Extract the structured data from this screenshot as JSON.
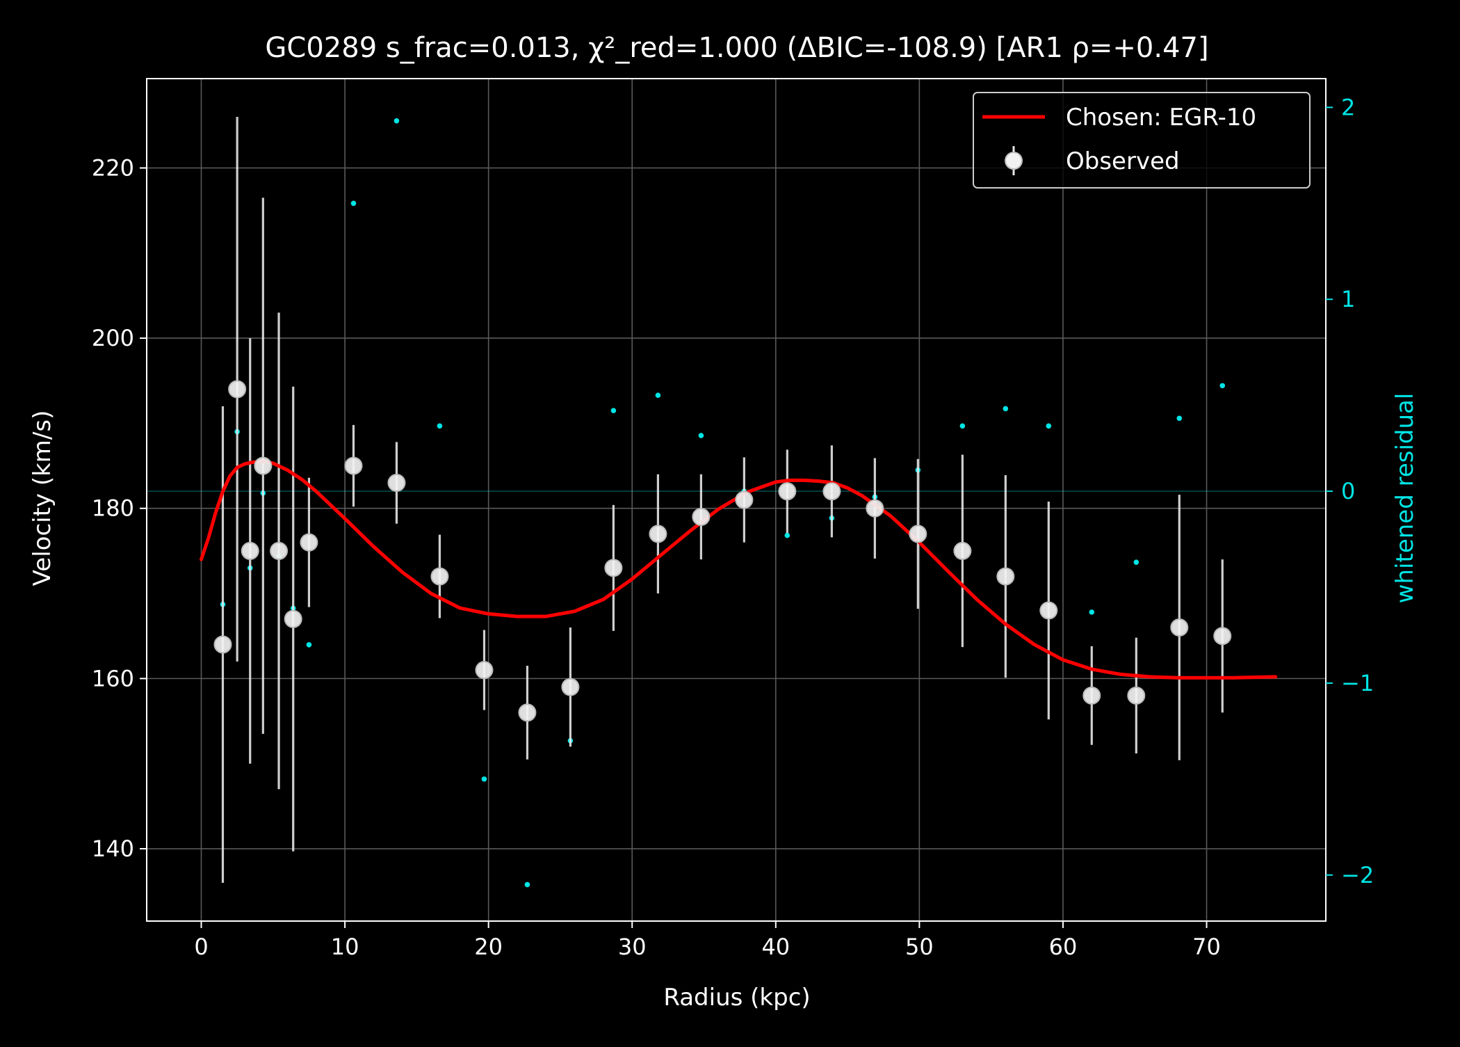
{
  "chart_data": {
    "type": "scatter",
    "title": "GC0289  s_frac=0.013, χ²_red=1.000  (ΔBIC=-108.9) [AR1 ρ=+0.47]",
    "xlabel": "Radius (kpc)",
    "ylabel": "Velocity (km/s)",
    "y2label": "whitened residual",
    "xlim": [
      -3.8,
      78.3
    ],
    "ylim": [
      131.5,
      230.5
    ],
    "y2lim": [
      -2.24,
      2.15
    ],
    "x_ticks": [
      0,
      10,
      20,
      30,
      40,
      50,
      60,
      70
    ],
    "y_ticks": [
      140,
      160,
      180,
      200,
      220
    ],
    "y2_ticks": [
      -2,
      -1,
      0,
      1,
      2
    ],
    "y2_tick_labels": [
      "−2",
      "−1",
      "0",
      "1",
      "2"
    ],
    "grid": true,
    "legend_position": "top-right",
    "colors": {
      "background": "#000000",
      "axes": "#ffffff",
      "grid": "#5a5a5a",
      "model": "#ff0000",
      "observed": "#e6e6e6",
      "residual": "#00e5e5"
    },
    "series": [
      {
        "name": "Chosen: EGR-10",
        "kind": "line",
        "x": [
          0,
          0.5,
          1,
          1.5,
          2,
          2.5,
          3,
          3.5,
          4,
          4.5,
          5,
          6,
          7,
          8,
          10,
          12,
          14,
          16,
          18,
          20,
          22,
          24,
          26,
          28,
          30,
          32,
          34,
          36,
          38,
          40,
          41,
          42,
          43,
          44,
          45,
          46,
          48,
          50,
          52,
          54,
          56,
          58,
          60,
          62,
          64,
          66,
          68,
          70,
          72,
          74.8
        ],
        "y": [
          174,
          176.5,
          179.5,
          182,
          183.8,
          184.8,
          185.2,
          185.4,
          185.5,
          185.5,
          185.3,
          184.5,
          183.4,
          182,
          178.8,
          175.5,
          172.5,
          170,
          168.3,
          167.6,
          167.3,
          167.3,
          167.9,
          169.3,
          171.7,
          174.5,
          177.3,
          179.9,
          181.9,
          183.1,
          183.3,
          183.3,
          183.2,
          183,
          182.4,
          181.5,
          179.1,
          176,
          172.6,
          169.3,
          166.4,
          164,
          162.2,
          161.1,
          160.5,
          160.2,
          160.1,
          160.1,
          160.1,
          160.2
        ]
      },
      {
        "name": "Observed",
        "kind": "errorbar",
        "x": [
          1.5,
          2.5,
          3.4,
          4.3,
          5.4,
          6.4,
          7.5,
          10.6,
          13.6,
          16.6,
          19.7,
          22.7,
          25.7,
          28.7,
          31.8,
          34.8,
          37.8,
          40.8,
          43.9,
          46.9,
          49.9,
          53.0,
          56.0,
          59.0,
          62.0,
          65.1,
          68.1,
          71.1
        ],
        "y": [
          164,
          194,
          175,
          185,
          175,
          167,
          176,
          185,
          183,
          172,
          161,
          156,
          159,
          173,
          177,
          179,
          181,
          182,
          182,
          180,
          177,
          175,
          172,
          168,
          158,
          158,
          166,
          165
        ],
        "yerr": [
          28,
          32,
          25,
          31.5,
          28,
          27.3,
          7.6,
          4.8,
          4.8,
          4.9,
          4.7,
          5.5,
          7,
          7.4,
          7,
          5,
          5,
          4.9,
          5.4,
          5.9,
          8.8,
          11.3,
          11.9,
          12.8,
          5.8,
          6.8,
          15.6,
          9
        ]
      },
      {
        "kind": "residual",
        "axis": "right",
        "x": [
          1.5,
          2.5,
          3.4,
          4.3,
          5.4,
          6.4,
          7.5,
          10.6,
          13.6,
          16.6,
          19.7,
          22.7,
          25.7,
          28.7,
          31.8,
          34.8,
          37.8,
          40.8,
          43.9,
          46.9,
          49.9,
          53.0,
          56.0,
          59.0,
          62.0,
          65.1,
          68.1,
          71.1
        ],
        "y": [
          -0.59,
          0.31,
          -0.4,
          -0.01,
          -0.34,
          -0.61,
          -0.8,
          1.5,
          1.93,
          0.34,
          -1.5,
          -2.05,
          -1.3,
          0.42,
          0.5,
          0.29,
          0,
          -0.23,
          -0.14,
          -0.03,
          0.11,
          0.34,
          0.43,
          0.34,
          -0.63,
          -0.37,
          0.38,
          0.55
        ]
      }
    ]
  }
}
